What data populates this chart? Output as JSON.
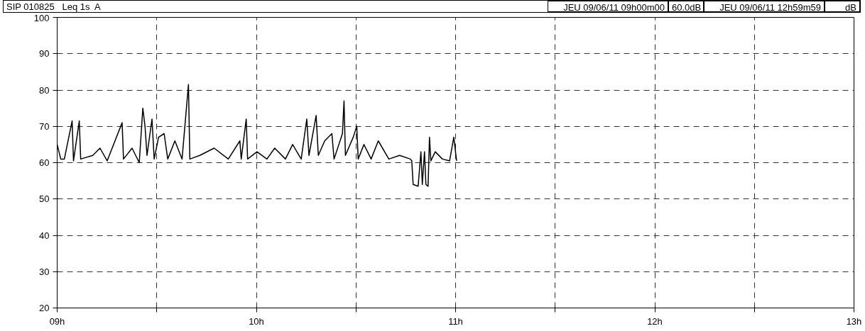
{
  "chart_data": {
    "type": "line",
    "title": "SIP 010825   Leq 1s  A",
    "annotations": [
      "JEU 09/06/11 09h00m00",
      "60.0dB",
      "JEU 09/06/11 12h59m59",
      "dB"
    ],
    "x": [
      9.0,
      9.018,
      9.036,
      9.075,
      9.082,
      9.111,
      9.118,
      9.179,
      9.215,
      9.251,
      9.326,
      9.333,
      9.376,
      9.412,
      9.43,
      9.441,
      9.451,
      9.476,
      9.487,
      9.509,
      9.537,
      9.555,
      9.591,
      9.627,
      9.659,
      9.666,
      9.716,
      9.788,
      9.859,
      9.917,
      9.924,
      9.949,
      9.956,
      10.003,
      10.053,
      10.092,
      10.146,
      10.182,
      10.225,
      10.253,
      10.264,
      10.3,
      10.311,
      10.343,
      10.379,
      10.39,
      10.432,
      10.44,
      10.447,
      10.486,
      10.504,
      10.511,
      10.54,
      10.576,
      10.612,
      10.665,
      10.719,
      10.773,
      10.78,
      10.787,
      10.812,
      10.826,
      10.833,
      10.844,
      10.851,
      10.862,
      10.869,
      10.876,
      10.898,
      10.934,
      10.97,
      10.991,
      11.005
    ],
    "series": [
      {
        "color": "#000000",
        "values": [
          65,
          61,
          61,
          71.5,
          60.5,
          71.5,
          61,
          62,
          64,
          60.5,
          71,
          61,
          64,
          60,
          75,
          70,
          62,
          72,
          61,
          67,
          68,
          61,
          66,
          61,
          81.5,
          61,
          62,
          64,
          61,
          66,
          61,
          72,
          61,
          63,
          61,
          64,
          61,
          65,
          61,
          72,
          62,
          73,
          62,
          66,
          68,
          61,
          68,
          77,
          62,
          67,
          70,
          61,
          65,
          61,
          66,
          61,
          62,
          61,
          60.5,
          54,
          53.5,
          63,
          54,
          63,
          54,
          53.5,
          67,
          60.5,
          63,
          61,
          60.5,
          67,
          60.5
        ]
      }
    ],
    "xlim": [
      9,
      13
    ],
    "xticks": [
      {
        "value": 9,
        "label": "09h"
      },
      {
        "value": 9.5,
        "label": null
      },
      {
        "value": 10,
        "label": "10h"
      },
      {
        "value": 10.5,
        "label": null
      },
      {
        "value": 11,
        "label": "11h"
      },
      {
        "value": 11.5,
        "label": null
      },
      {
        "value": 12,
        "label": "12h"
      },
      {
        "value": 12.5,
        "label": null
      },
      {
        "value": 13,
        "label": "13h"
      }
    ],
    "ylim": [
      20,
      100
    ],
    "yticks": [
      20,
      30,
      40,
      50,
      60,
      70,
      80,
      90,
      100
    ],
    "grid": true
  }
}
